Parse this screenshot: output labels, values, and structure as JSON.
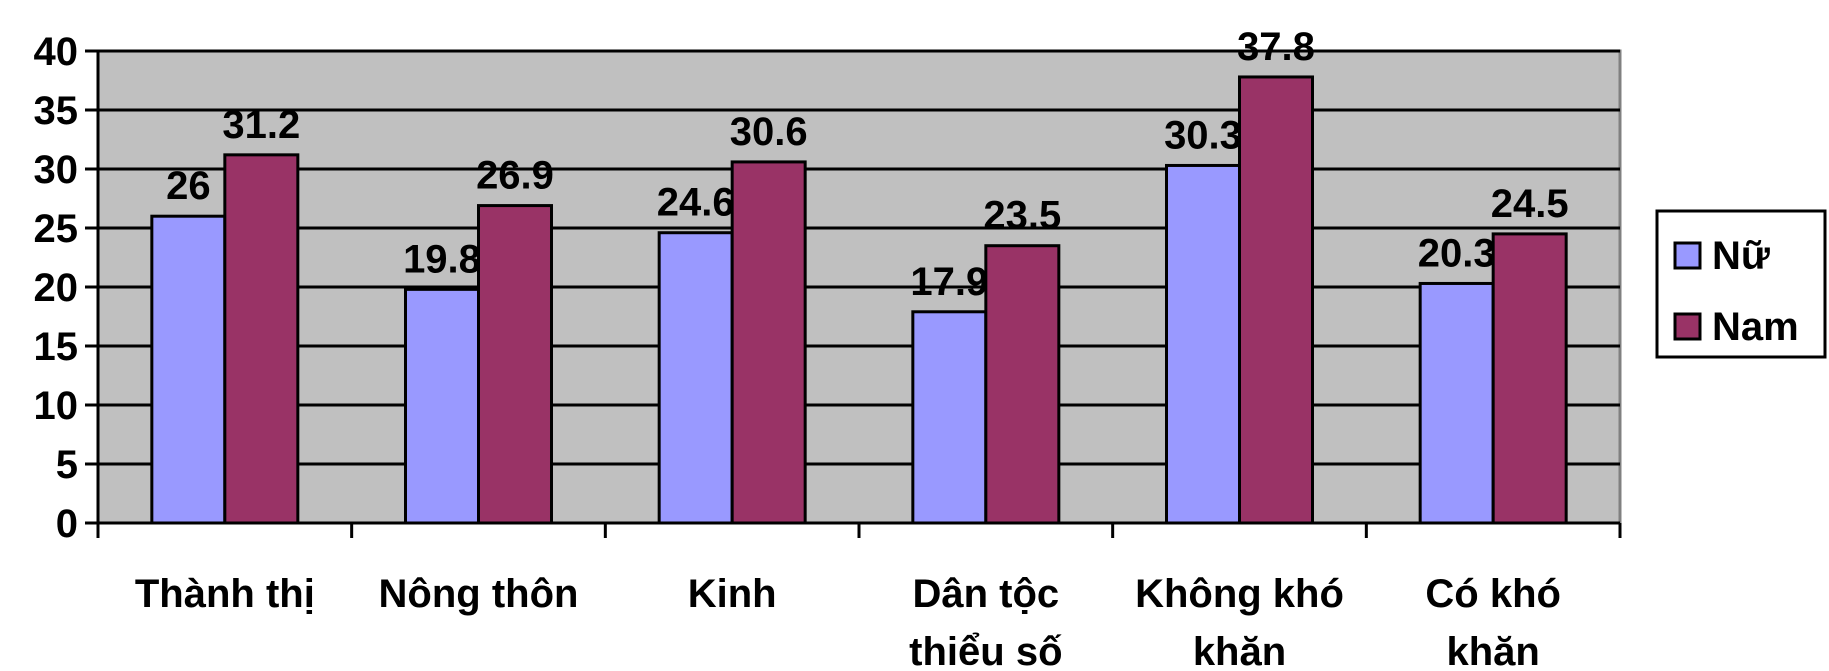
{
  "chart_data": {
    "type": "bar",
    "categories": [
      [
        "Thành thị"
      ],
      [
        "Nông thôn"
      ],
      [
        "Kinh"
      ],
      [
        "Dân tộc",
        "thiểu số"
      ],
      [
        "Không khó",
        "khăn"
      ],
      [
        "Có khó",
        "khăn"
      ]
    ],
    "series": [
      {
        "name": "Nữ",
        "values": [
          26,
          19.8,
          24.6,
          17.9,
          30.3,
          20.3
        ],
        "color": "#9999ff"
      },
      {
        "name": "Nam",
        "values": [
          31.2,
          26.9,
          30.6,
          23.5,
          37.8,
          24.5
        ],
        "color": "#993366"
      }
    ],
    "data_labels": [
      [
        "26",
        "19.8",
        "24.6",
        "17.9",
        "30.3",
        "20.3"
      ],
      [
        "31.2",
        "26.9",
        "30.6",
        "23.5",
        "37.8",
        "24.5"
      ]
    ],
    "y_ticks": [
      "0",
      "5",
      "10",
      "15",
      "20",
      "25",
      "30",
      "35",
      "40"
    ],
    "ylim": [
      0,
      40
    ],
    "grid": true,
    "plot_background": "#c0c0c0",
    "legend_position": "right"
  }
}
